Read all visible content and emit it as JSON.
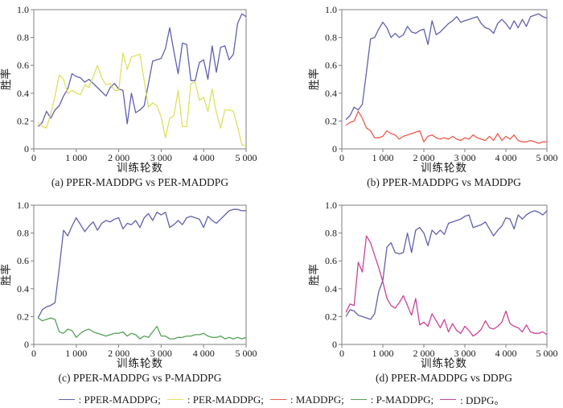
{
  "colors": {
    "axis": "#7f7f7f",
    "text": "#1a1a1a"
  },
  "axes": {
    "xlim": [
      0,
      5000
    ],
    "ylim": [
      0,
      1.0
    ],
    "x_start": 100,
    "x_step": 100,
    "x_ticks": [
      0,
      1000,
      2000,
      3000,
      4000,
      5000
    ],
    "x_tick_labels": [
      "0",
      "1 000",
      "2 000",
      "3 000",
      "4 000",
      "5 000"
    ],
    "y_ticks": [
      0,
      0.2,
      0.4,
      0.6,
      0.8,
      1.0
    ],
    "y_tick_labels": [
      "0",
      "0.2",
      "0.4",
      "0.6",
      "0.8",
      "1.0"
    ],
    "grid": false
  },
  "chart_data": [
    {
      "type": "line",
      "caption": "(a) PPER-MADDPG vs PER-MADDPG",
      "xlabel": "训练轮数",
      "ylabel": "胜率",
      "series": [
        {
          "name": "PPER-MADDPG",
          "color": "#5f61ad",
          "values": [
            0.16,
            0.19,
            0.27,
            0.22,
            0.28,
            0.31,
            0.38,
            0.43,
            0.54,
            0.52,
            0.51,
            0.48,
            0.5,
            0.47,
            0.44,
            0.41,
            0.38,
            0.44,
            0.47,
            0.43,
            0.42,
            0.18,
            0.4,
            0.26,
            0.28,
            0.31,
            0.47,
            0.63,
            0.64,
            0.65,
            0.72,
            0.87,
            0.7,
            0.54,
            0.76,
            0.75,
            0.49,
            0.49,
            0.62,
            0.64,
            0.5,
            0.74,
            0.55,
            0.73,
            0.74,
            0.64,
            0.68,
            0.9,
            0.97,
            0.95
          ]
        },
        {
          "name": "PER-MADDPG",
          "color": "#dde05f",
          "values": [
            0.19,
            0.16,
            0.15,
            0.25,
            0.38,
            0.53,
            0.5,
            0.4,
            0.42,
            0.4,
            0.39,
            0.46,
            0.44,
            0.52,
            0.6,
            0.51,
            0.46,
            0.47,
            0.42,
            0.42,
            0.69,
            0.57,
            0.66,
            0.67,
            0.68,
            0.49,
            0.3,
            0.33,
            0.31,
            0.23,
            0.08,
            0.22,
            0.24,
            0.42,
            0.16,
            0.16,
            0.47,
            0.48,
            0.35,
            0.37,
            0.27,
            0.43,
            0.26,
            0.15,
            0.28,
            0.28,
            0.27,
            0.16,
            0.03,
            0.02
          ]
        }
      ]
    },
    {
      "type": "line",
      "caption": "(b) PPER-MADDPG vs MADDPG",
      "xlabel": "训练轮数",
      "ylabel": "胜率",
      "series": [
        {
          "name": "PPER-MADDPG",
          "color": "#5f61ad",
          "values": [
            0.21,
            0.24,
            0.3,
            0.28,
            0.32,
            0.55,
            0.79,
            0.8,
            0.86,
            0.91,
            0.87,
            0.8,
            0.83,
            0.8,
            0.82,
            0.88,
            0.84,
            0.83,
            0.85,
            0.86,
            0.75,
            0.92,
            0.82,
            0.84,
            0.87,
            0.9,
            0.92,
            0.95,
            0.91,
            0.92,
            0.93,
            0.94,
            0.95,
            0.9,
            0.87,
            0.86,
            0.83,
            0.9,
            0.93,
            0.9,
            0.86,
            0.92,
            0.87,
            0.93,
            0.88,
            0.95,
            0.96,
            0.97,
            0.95,
            0.94
          ]
        },
        {
          "name": "MADDPG",
          "color": "#ee5a4a",
          "values": [
            0.17,
            0.19,
            0.2,
            0.27,
            0.22,
            0.15,
            0.13,
            0.08,
            0.08,
            0.09,
            0.13,
            0.11,
            0.1,
            0.07,
            0.09,
            0.1,
            0.11,
            0.12,
            0.13,
            0.05,
            0.09,
            0.1,
            0.08,
            0.07,
            0.08,
            0.07,
            0.09,
            0.07,
            0.06,
            0.08,
            0.07,
            0.1,
            0.08,
            0.07,
            0.06,
            0.09,
            0.06,
            0.11,
            0.06,
            0.09,
            0.07,
            0.1,
            0.06,
            0.05,
            0.05,
            0.06,
            0.05,
            0.04,
            0.05,
            0.05
          ]
        }
      ]
    },
    {
      "type": "line",
      "caption": "(c) PPER-MADDPG vs P-MADDPG",
      "xlabel": "训练轮数",
      "ylabel": "胜率",
      "series": [
        {
          "name": "PPER-MADDPG",
          "color": "#5f61ad",
          "values": [
            0.19,
            0.25,
            0.27,
            0.28,
            0.3,
            0.55,
            0.82,
            0.78,
            0.85,
            0.91,
            0.86,
            0.81,
            0.85,
            0.88,
            0.82,
            0.87,
            0.89,
            0.88,
            0.9,
            0.91,
            0.83,
            0.87,
            0.86,
            0.89,
            0.84,
            0.91,
            0.94,
            0.89,
            0.95,
            0.93,
            0.95,
            0.84,
            0.86,
            0.89,
            0.86,
            0.91,
            0.92,
            0.91,
            0.9,
            0.84,
            0.92,
            0.89,
            0.87,
            0.9,
            0.93,
            0.96,
            0.97,
            0.97,
            0.96,
            0.96
          ]
        },
        {
          "name": "P-MADDPG",
          "color": "#55a257",
          "values": [
            0.19,
            0.17,
            0.18,
            0.19,
            0.18,
            0.09,
            0.08,
            0.11,
            0.1,
            0.05,
            0.08,
            0.1,
            0.11,
            0.09,
            0.08,
            0.07,
            0.06,
            0.07,
            0.08,
            0.08,
            0.09,
            0.06,
            0.08,
            0.07,
            0.04,
            0.06,
            0.05,
            0.09,
            0.13,
            0.06,
            0.06,
            0.04,
            0.04,
            0.05,
            0.05,
            0.06,
            0.06,
            0.07,
            0.07,
            0.08,
            0.06,
            0.05,
            0.05,
            0.06,
            0.04,
            0.05,
            0.04,
            0.05,
            0.04,
            0.05
          ]
        }
      ]
    },
    {
      "type": "line",
      "caption": "(d) PPER-MADDPG vs DDPG",
      "xlabel": "训练轮数",
      "ylabel": "胜率",
      "series": [
        {
          "name": "PPER-MADDPG",
          "color": "#5f61ad",
          "values": [
            0.2,
            0.25,
            0.24,
            0.21,
            0.2,
            0.19,
            0.18,
            0.22,
            0.38,
            0.46,
            0.7,
            0.73,
            0.66,
            0.65,
            0.66,
            0.8,
            0.66,
            0.82,
            0.84,
            0.8,
            0.71,
            0.82,
            0.79,
            0.82,
            0.79,
            0.87,
            0.88,
            0.89,
            0.9,
            0.92,
            0.93,
            0.84,
            0.85,
            0.86,
            0.88,
            0.83,
            0.78,
            0.82,
            0.85,
            0.91,
            0.9,
            0.83,
            0.93,
            0.9,
            0.93,
            0.95,
            0.96,
            0.95,
            0.93,
            0.96
          ]
        },
        {
          "name": "DDPG",
          "color": "#c9439a",
          "values": [
            0.23,
            0.29,
            0.28,
            0.59,
            0.52,
            0.78,
            0.73,
            0.64,
            0.55,
            0.45,
            0.33,
            0.28,
            0.26,
            0.3,
            0.35,
            0.28,
            0.21,
            0.33,
            0.14,
            0.16,
            0.13,
            0.22,
            0.17,
            0.12,
            0.18,
            0.09,
            0.15,
            0.1,
            0.08,
            0.13,
            0.1,
            0.06,
            0.08,
            0.11,
            0.17,
            0.12,
            0.11,
            0.13,
            0.16,
            0.24,
            0.15,
            0.13,
            0.12,
            0.09,
            0.14,
            0.09,
            0.08,
            0.08,
            0.09,
            0.07
          ]
        }
      ]
    }
  ],
  "legend": {
    "items": [
      {
        "text": ": PPER-MADDPG;",
        "color": "#5f61ad"
      },
      {
        "text": ": PER-MADDPG;",
        "color": "#dde05f"
      },
      {
        "text": ": MADDPG;",
        "color": "#ee5a4a"
      },
      {
        "text": ": P-MADDPG;",
        "color": "#55a257"
      },
      {
        "text": ": DDPG。",
        "color": "#c9439a"
      }
    ]
  }
}
